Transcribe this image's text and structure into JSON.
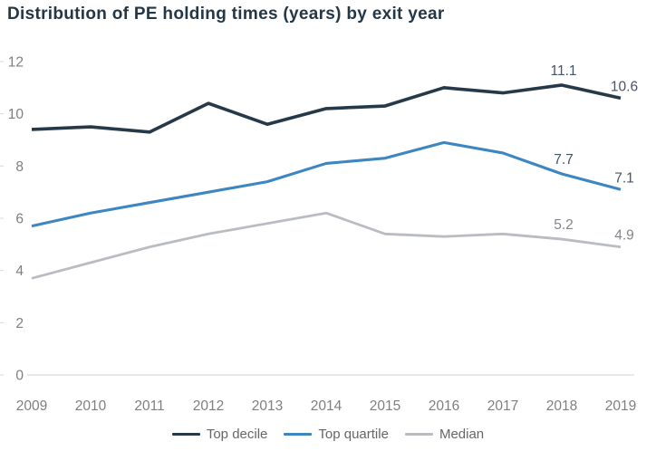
{
  "title": "Distribution of PE holding times (years) by exit year",
  "colors": {
    "title_text": "#243746",
    "axis_line": "#d9d9d9",
    "tick_label": "#7f7f7f",
    "legend_text": "#666666"
  },
  "chart_data": {
    "type": "line",
    "title": "Distribution of PE holding times (years) by exit year",
    "xlabel": "",
    "ylabel": "",
    "x": [
      "2009",
      "2010",
      "2011",
      "2012",
      "2013",
      "2014",
      "2015",
      "2016",
      "2017",
      "2018",
      "2019"
    ],
    "ylim": [
      0,
      12
    ],
    "yticks": [
      0,
      2,
      4,
      6,
      8,
      10,
      12
    ],
    "grid": false,
    "legend_position": "bottom",
    "series": [
      {
        "name": "Top decile",
        "color": "#263949",
        "label_color": "#44546a",
        "values": [
          9.4,
          9.5,
          9.3,
          10.4,
          9.6,
          10.2,
          10.3,
          11.0,
          10.8,
          11.1,
          10.6
        ],
        "point_labels": [
          {
            "index": 9,
            "text": "11.1"
          },
          {
            "index": 10,
            "text": "10.6"
          }
        ]
      },
      {
        "name": "Top quartile",
        "color": "#3c86c2",
        "label_color": "#44546a",
        "values": [
          5.7,
          6.2,
          6.6,
          7.0,
          7.4,
          8.1,
          8.3,
          8.9,
          8.5,
          7.7,
          7.1
        ],
        "point_labels": [
          {
            "index": 9,
            "text": "7.7"
          },
          {
            "index": 10,
            "text": "7.1"
          }
        ]
      },
      {
        "name": "Median",
        "color": "#b9bcc1",
        "label_color": "#84848c",
        "values": [
          3.7,
          4.3,
          4.9,
          5.4,
          5.8,
          6.2,
          5.4,
          5.3,
          5.4,
          5.2,
          4.9
        ],
        "point_labels": [
          {
            "index": 9,
            "text": "5.2"
          },
          {
            "index": 10,
            "text": "4.9"
          }
        ]
      }
    ]
  }
}
